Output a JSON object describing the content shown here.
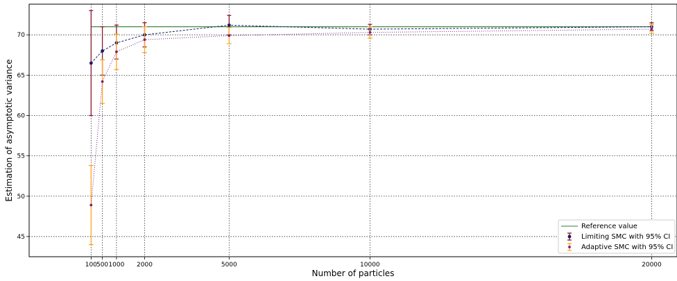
{
  "chart_data": {
    "type": "line",
    "xlabel": "Number of particles",
    "ylabel": "Estimation of asymptotic variance",
    "xlim": [
      -2100,
      20900
    ],
    "ylim": [
      42.5,
      73.8
    ],
    "x_ticks": [
      100,
      500,
      1000,
      2000,
      5000,
      10000,
      20000
    ],
    "x_tick_labels": [
      "100",
      "500",
      "1000",
      "2000",
      "5000",
      "10000",
      "20000"
    ],
    "y_ticks": [
      45,
      50,
      55,
      60,
      65,
      70
    ],
    "y_tick_labels": [
      "45",
      "50",
      "55",
      "60",
      "65",
      "70"
    ],
    "grid": true,
    "legend_position": "bottom-right",
    "colors": {
      "reference": "#2e7d32",
      "limiting": "#1a1a6e",
      "limiting_error": "#8b1a2b",
      "adaptive": "#7b1f7b",
      "adaptive_error": "#ffa726"
    },
    "reference": {
      "name": "Reference value",
      "value": 71.0
    },
    "series": [
      {
        "name": "Limiting SMC with 95% CI",
        "x": [
          100,
          500,
          1000,
          2000,
          5000,
          10000,
          20000
        ],
        "y": [
          66.5,
          68.0,
          69.0,
          70.0,
          71.2,
          70.7,
          71.0
        ],
        "lower": [
          60.0,
          65.0,
          67.0,
          68.5,
          70.0,
          70.0,
          70.5
        ],
        "upper": [
          73.0,
          71.0,
          71.2,
          71.5,
          72.4,
          71.3,
          71.5
        ]
      },
      {
        "name": "Adaptive SMC with 95% CI",
        "x": [
          100,
          500,
          1000,
          2000,
          5000,
          10000,
          20000
        ],
        "y": [
          48.9,
          64.2,
          67.9,
          69.4,
          69.9,
          70.3,
          70.7
        ],
        "lower": [
          44.0,
          61.5,
          65.7,
          67.8,
          68.9,
          69.6,
          70.2
        ],
        "upper": [
          53.8,
          66.9,
          70.1,
          71.0,
          70.9,
          71.0,
          71.3
        ]
      }
    ]
  }
}
